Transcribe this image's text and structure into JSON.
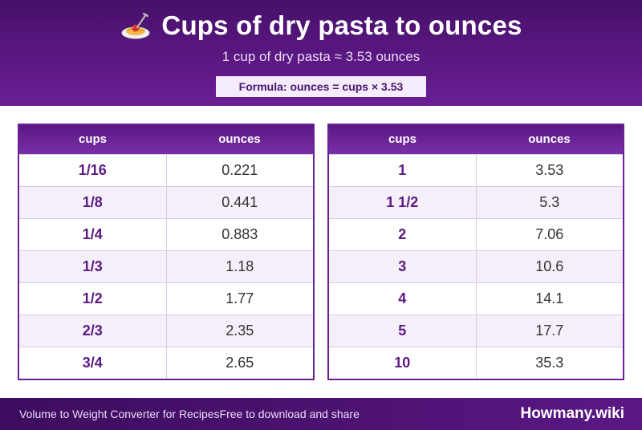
{
  "header": {
    "icon": "spaghetti-icon",
    "title": "Cups of dry pasta to ounces",
    "subtitle": "1 cup of dry pasta ≈ 3.53 ounces",
    "formula": "Formula: ounces = cups × 3.53"
  },
  "tables": [
    {
      "headers": [
        "cups",
        "ounces"
      ],
      "rows": [
        [
          "1/16",
          "0.221"
        ],
        [
          "1/8",
          "0.441"
        ],
        [
          "1/4",
          "0.883"
        ],
        [
          "1/3",
          "1.18"
        ],
        [
          "1/2",
          "1.77"
        ],
        [
          "2/3",
          "2.35"
        ],
        [
          "3/4",
          "2.65"
        ]
      ]
    },
    {
      "headers": [
        "cups",
        "ounces"
      ],
      "rows": [
        [
          "1",
          "3.53"
        ],
        [
          "1 1/2",
          "5.3"
        ],
        [
          "2",
          "7.06"
        ],
        [
          "3",
          "10.6"
        ],
        [
          "4",
          "14.1"
        ],
        [
          "5",
          "17.7"
        ],
        [
          "10",
          "35.3"
        ]
      ]
    }
  ],
  "footer": {
    "left_text_1": "Volume to Weight Converter for Recipes",
    "left_text_2": "Free to download and share",
    "brand": "Howmany.wiki"
  },
  "colors": {
    "primary": "#5a1884",
    "accent": "#6a2195",
    "row_alt": "#f5effa"
  }
}
